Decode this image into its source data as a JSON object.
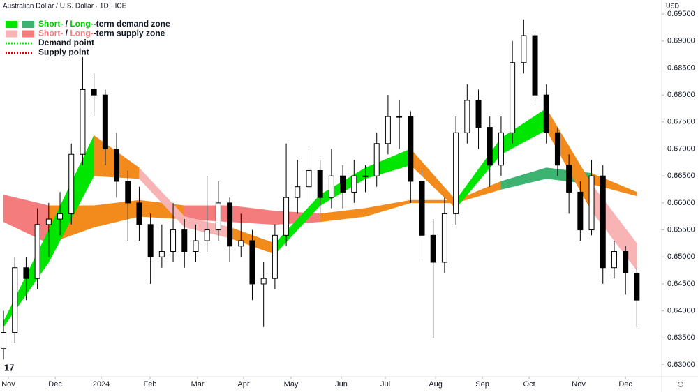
{
  "chart_data": {
    "type": "candlestick",
    "title": "Australian Dollar / U.S. Dollar · 1D · ICE",
    "currency": "USD",
    "xlim": [
      -0.31,
      58.2
    ],
    "xticks": [
      {
        "value": 0.43,
        "label": "Nov"
      },
      {
        "value": 4.57,
        "label": "Dec"
      },
      {
        "value": 8.64,
        "label": "2024"
      },
      {
        "value": 12.96,
        "label": "Feb"
      },
      {
        "value": 17.16,
        "label": "Mar"
      },
      {
        "value": 21.23,
        "label": "Apr"
      },
      {
        "value": 25.43,
        "label": "May"
      },
      {
        "value": 29.87,
        "label": "Jun"
      },
      {
        "value": 33.76,
        "label": "Jul"
      },
      {
        "value": 38.21,
        "label": "Aug"
      },
      {
        "value": 42.34,
        "label": "Sep"
      },
      {
        "value": 46.48,
        "label": "Oct"
      },
      {
        "value": 50.86,
        "label": "Nov"
      },
      {
        "value": 55.0,
        "label": "Dec"
      }
    ],
    "ylim": [
      0.6278,
      0.6976
    ],
    "yticks": [
      {
        "value": 0.63,
        "label": "0.63000"
      },
      {
        "value": 0.635,
        "label": "0.63500"
      },
      {
        "value": 0.64,
        "label": "0.64000"
      },
      {
        "value": 0.645,
        "label": "0.64500"
      },
      {
        "value": 0.65,
        "label": "0.65000"
      },
      {
        "value": 0.655,
        "label": "0.65500"
      },
      {
        "value": 0.66,
        "label": "0.66000"
      },
      {
        "value": 0.665,
        "label": "0.66500"
      },
      {
        "value": 0.67,
        "label": "0.67000"
      },
      {
        "value": 0.675,
        "label": "0.67500"
      },
      {
        "value": 0.68,
        "label": "0.68000"
      },
      {
        "value": 0.685,
        "label": "0.68500"
      },
      {
        "value": 0.69,
        "label": "0.69000"
      },
      {
        "value": 0.695,
        "label": "0.69500"
      }
    ],
    "candles": {
      "up_color": "#ffffff",
      "down_color": "#000000",
      "ohlc": [
        [
          0.633,
          0.64,
          0.631,
          0.636
        ],
        [
          0.636,
          0.65,
          0.634,
          0.648
        ],
        [
          0.648,
          0.65,
          0.642,
          0.646
        ],
        [
          0.646,
          0.659,
          0.644,
          0.656
        ],
        [
          0.656,
          0.66,
          0.65,
          0.657
        ],
        [
          0.657,
          0.662,
          0.654,
          0.658
        ],
        [
          0.658,
          0.671,
          0.656,
          0.669
        ],
        [
          0.669,
          0.687,
          0.667,
          0.681
        ],
        [
          0.681,
          0.684,
          0.676,
          0.68
        ],
        [
          0.68,
          0.681,
          0.667,
          0.67
        ],
        [
          0.67,
          0.673,
          0.661,
          0.664
        ],
        [
          0.664,
          0.666,
          0.653,
          0.66
        ],
        [
          0.66,
          0.663,
          0.653,
          0.656
        ],
        [
          0.656,
          0.658,
          0.645,
          0.65
        ],
        [
          0.65,
          0.656,
          0.648,
          0.651
        ],
        [
          0.651,
          0.66,
          0.649,
          0.655
        ],
        [
          0.655,
          0.657,
          0.648,
          0.651
        ],
        [
          0.651,
          0.656,
          0.649,
          0.653
        ],
        [
          0.653,
          0.665,
          0.651,
          0.655
        ],
        [
          0.655,
          0.664,
          0.653,
          0.66
        ],
        [
          0.66,
          0.661,
          0.649,
          0.652
        ],
        [
          0.652,
          0.658,
          0.65,
          0.653
        ],
        [
          0.653,
          0.655,
          0.642,
          0.645
        ],
        [
          0.645,
          0.649,
          0.637,
          0.646
        ],
        [
          0.646,
          0.656,
          0.644,
          0.654
        ],
        [
          0.654,
          0.671,
          0.652,
          0.661
        ],
        [
          0.661,
          0.668,
          0.658,
          0.663
        ],
        [
          0.663,
          0.67,
          0.66,
          0.666
        ],
        [
          0.666,
          0.668,
          0.658,
          0.661
        ],
        [
          0.661,
          0.67,
          0.659,
          0.665
        ],
        [
          0.665,
          0.667,
          0.659,
          0.662
        ],
        [
          0.662,
          0.668,
          0.66,
          0.665
        ],
        [
          0.665,
          0.667,
          0.662,
          0.665
        ],
        [
          0.665,
          0.673,
          0.663,
          0.671
        ],
        [
          0.671,
          0.68,
          0.669,
          0.676
        ],
        [
          0.676,
          0.679,
          0.67,
          0.676
        ],
        [
          0.676,
          0.677,
          0.66,
          0.664
        ],
        [
          0.664,
          0.666,
          0.65,
          0.654
        ],
        [
          0.654,
          0.657,
          0.635,
          0.649
        ],
        [
          0.649,
          0.661,
          0.647,
          0.658
        ],
        [
          0.658,
          0.676,
          0.656,
          0.673
        ],
        [
          0.673,
          0.682,
          0.671,
          0.679
        ],
        [
          0.679,
          0.681,
          0.67,
          0.674
        ],
        [
          0.674,
          0.676,
          0.663,
          0.667
        ],
        [
          0.667,
          0.676,
          0.665,
          0.673
        ],
        [
          0.673,
          0.69,
          0.671,
          0.686
        ],
        [
          0.686,
          0.694,
          0.684,
          0.691
        ],
        [
          0.691,
          0.692,
          0.678,
          0.68
        ],
        [
          0.68,
          0.682,
          0.671,
          0.673
        ],
        [
          0.673,
          0.674,
          0.665,
          0.667
        ],
        [
          0.667,
          0.669,
          0.658,
          0.662
        ],
        [
          0.662,
          0.664,
          0.653,
          0.655
        ],
        [
          0.655,
          0.668,
          0.654,
          0.665
        ],
        [
          0.665,
          0.667,
          0.645,
          0.648
        ],
        [
          0.648,
          0.653,
          0.646,
          0.651
        ],
        [
          0.651,
          0.652,
          0.643,
          0.647
        ],
        [
          0.647,
          0.648,
          0.637,
          0.642
        ]
      ]
    },
    "zones": [
      {
        "x": [
          0,
          4,
          8,
          12,
          16,
          20,
          24,
          28,
          32,
          36,
          40,
          44,
          48,
          52,
          56
        ],
        "lower": [
          0.6565,
          0.6525,
          0.6555,
          0.6575,
          0.657,
          0.6565,
          0.656,
          0.6565,
          0.6575,
          0.66,
          0.66,
          0.6625,
          0.6645,
          0.6635,
          0.6613
        ],
        "upper": [
          0.6615,
          0.6595,
          0.6595,
          0.6605,
          0.6595,
          0.6595,
          0.6585,
          0.658,
          0.659,
          0.6605,
          0.6605,
          0.664,
          0.6665,
          0.6655,
          0.662
        ],
        "colors": [
          "#f47c7c",
          "#f28a1c",
          "#f28a1c",
          "#f28a1c",
          "#f47c7c",
          "#f47c7c",
          "#f47c7c",
          "#f28a1c",
          "#f28a1c",
          "#f28a1c",
          "#f28a1c",
          "#3cb371",
          "#3cb371",
          "#f28a1c"
        ]
      },
      {
        "x": [
          0,
          4,
          8,
          12,
          16,
          20,
          24,
          28,
          32,
          36,
          40,
          44,
          48,
          52,
          56
        ],
        "lower": [
          0.637,
          0.649,
          0.665,
          0.6645,
          0.6555,
          0.6535,
          0.6505,
          0.6595,
          0.6645,
          0.667,
          0.659,
          0.669,
          0.6735,
          0.6585,
          0.6475
        ],
        "upper": [
          0.638,
          0.655,
          0.6725,
          0.6665,
          0.6575,
          0.6555,
          0.6525,
          0.6615,
          0.6665,
          0.67,
          0.6605,
          0.672,
          0.6775,
          0.6635,
          0.6525
        ],
        "colors": [
          "#00e600",
          "#00e600",
          "#f28a1c",
          "#f8b4b4",
          "#f8b4b4",
          "#f28a1c",
          "#00e600",
          "#00e600",
          "#00e600",
          "#f28a1c",
          "#00e600",
          "#00e600",
          "#f28a1c",
          "#f8b4b4"
        ]
      }
    ],
    "legend": [
      {
        "swatches": [
          "#00e600",
          "#3cb371"
        ],
        "short": "Short-",
        "sep": " / ",
        "long": "Long-",
        "rest": "-term demand zone",
        "text_color": "#00c800"
      },
      {
        "swatches": [
          "#f8b4b4",
          "#f47c7c"
        ],
        "short": "Short-",
        "sep": " / ",
        "long": "Long-",
        "rest": "-term supply zone",
        "text_color": "#f47c7c"
      },
      {
        "dotted": "#00e600",
        "label": "Demand point"
      },
      {
        "dotted": "#e00000",
        "label": "Supply point"
      }
    ]
  }
}
